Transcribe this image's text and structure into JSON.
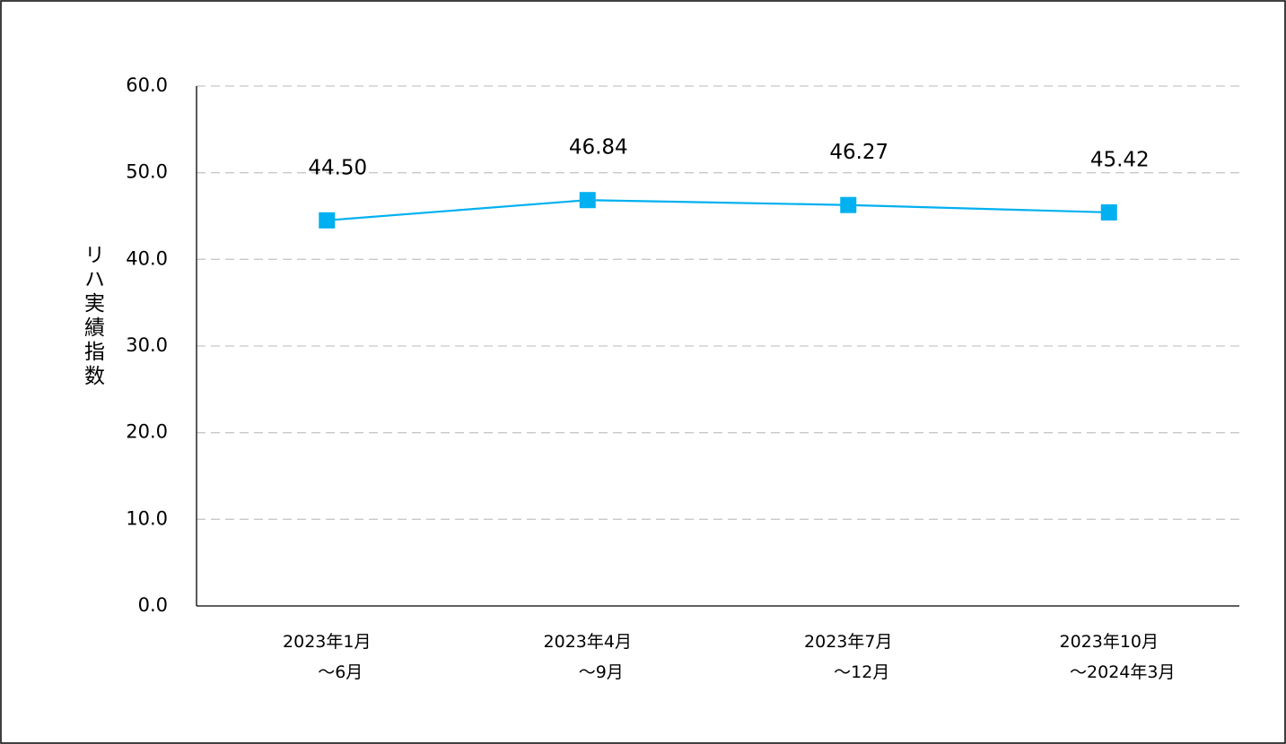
{
  "chart_data": {
    "type": "line",
    "ylabel": "リハ実績指数",
    "categories": [
      "2023年1月\n～6月",
      "2023年4月\n～9月",
      "2023年7月\n～12月",
      "2023年10月\n～2024年3月"
    ],
    "series": [
      {
        "name": "リハ実績指数",
        "color": "#00b0f0",
        "values": [
          44.5,
          46.84,
          46.27,
          45.42
        ],
        "value_labels": [
          "44.50",
          "46.84",
          "46.27",
          "45.42"
        ]
      }
    ],
    "ylim": [
      0,
      60
    ],
    "yticks": [
      {
        "value": 0,
        "label": "0.0"
      },
      {
        "value": 10,
        "label": "10.0"
      },
      {
        "value": 20,
        "label": "20.0"
      },
      {
        "value": 30,
        "label": "30.0"
      },
      {
        "value": 40,
        "label": "40.0"
      },
      {
        "value": 50,
        "label": "50.0"
      },
      {
        "value": 60,
        "label": "60.0"
      }
    ],
    "grid": true
  }
}
